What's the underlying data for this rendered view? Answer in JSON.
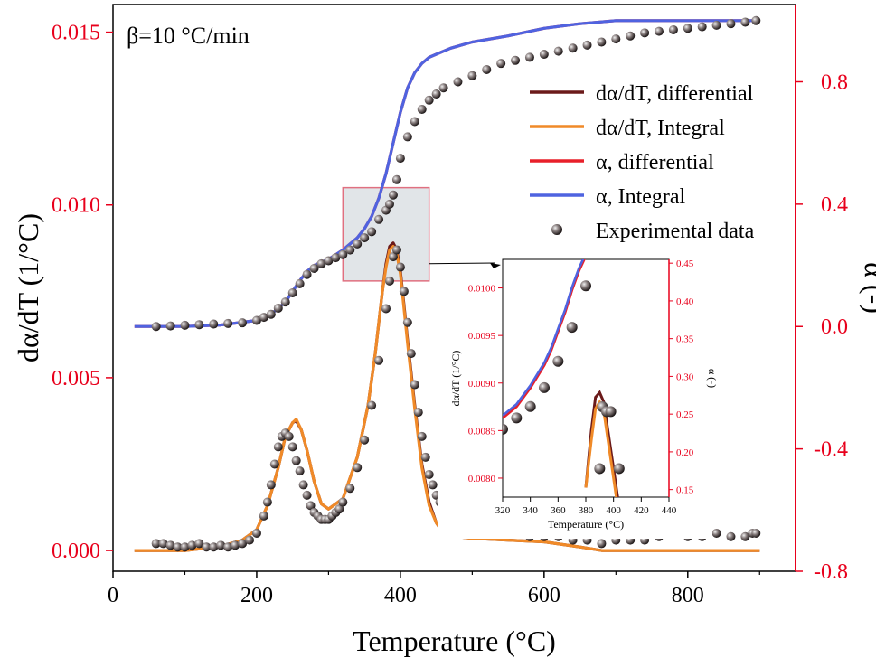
{
  "chart_data": {
    "type": "line",
    "title": "β=10 °C/min",
    "xlabel": "Temperature (°C)",
    "ylabel": "dα/dT (1/°C)",
    "y2label": "α (-)",
    "xlim": [
      0,
      950
    ],
    "ylim": [
      -0.0006,
      0.0158
    ],
    "y2lim": [
      -0.8,
      1.0526
    ],
    "x_ticks": [
      0,
      200,
      400,
      600,
      800
    ],
    "y_ticks": [
      0.0,
      0.005,
      0.01,
      0.015
    ],
    "y_tick_labels": [
      "0.000",
      "0.005",
      "0.010",
      "0.015"
    ],
    "y2_ticks": [
      -0.8,
      -0.4,
      0.0,
      0.4,
      0.8
    ],
    "y2_tick_labels": [
      "-0.8",
      "-0.4",
      "0.0",
      "0.4",
      "0.8"
    ],
    "colors": {
      "axis_left": "#e8001c",
      "axis_right": "#e8001c",
      "dadt_differential": "#6b1a1a",
      "dadt_integral": "#f08a28",
      "alpha_differential": "#e8202a",
      "alpha_integral": "#4f63e0",
      "experimental": "#4a4040"
    },
    "legend": {
      "position": "top-right",
      "entries": [
        {
          "label": "dα/dT, differential",
          "key": "dadt_differential",
          "kind": "line"
        },
        {
          "label": "dα/dT, Integral",
          "key": "dadt_integral",
          "kind": "line"
        },
        {
          "label": "α,  differential",
          "key": "alpha_differential",
          "kind": "line"
        },
        {
          "label": "α,  Integral",
          "key": "alpha_integral",
          "kind": "line"
        },
        {
          "label": "Experimental data",
          "key": "experimental",
          "kind": "marker"
        }
      ]
    },
    "series": [
      {
        "name": "dα/dT, differential",
        "axis": "left",
        "key": "dadt_differential",
        "x": [
          30,
          100,
          150,
          180,
          200,
          215,
          230,
          240,
          250,
          255,
          262,
          270,
          280,
          290,
          300,
          320,
          340,
          355,
          365,
          375,
          380,
          385,
          390,
          395,
          400,
          405,
          410,
          420,
          430,
          440,
          450,
          460,
          480,
          500,
          550,
          600,
          650,
          680,
          700,
          800,
          900
        ],
        "y": [
          0,
          0,
          0.00012,
          0.0003,
          0.0006,
          0.0013,
          0.0024,
          0.0033,
          0.0037,
          0.00375,
          0.0035,
          0.0029,
          0.002,
          0.00135,
          0.0012,
          0.0015,
          0.0027,
          0.0042,
          0.0057,
          0.0075,
          0.0083,
          0.0088,
          0.0089,
          0.0087,
          0.0081,
          0.0071,
          0.0061,
          0.0042,
          0.0025,
          0.0014,
          0.0008,
          0.0005,
          0.0004,
          0.00035,
          0.0003,
          0.00025,
          0.0001,
          0,
          0,
          0,
          0
        ]
      },
      {
        "name": "dα/dT, Integral",
        "axis": "left",
        "key": "dadt_integral",
        "x": [
          30,
          100,
          150,
          180,
          200,
          215,
          230,
          240,
          250,
          255,
          262,
          270,
          280,
          290,
          300,
          320,
          340,
          355,
          365,
          375,
          380,
          385,
          390,
          395,
          400,
          405,
          410,
          420,
          430,
          440,
          450,
          460,
          480,
          500,
          550,
          600,
          650,
          680,
          700,
          800,
          900
        ],
        "y": [
          0,
          0,
          0.00012,
          0.0003,
          0.0006,
          0.0013,
          0.0024,
          0.0033,
          0.0037,
          0.0038,
          0.0035,
          0.0029,
          0.002,
          0.00135,
          0.0012,
          0.0015,
          0.0027,
          0.0042,
          0.0057,
          0.0075,
          0.0082,
          0.0087,
          0.0088,
          0.0086,
          0.008,
          0.007,
          0.006,
          0.0041,
          0.0024,
          0.0013,
          0.0008,
          0.0005,
          0.0004,
          0.00035,
          0.0003,
          0.00025,
          0.0001,
          0,
          0,
          0,
          0
        ]
      },
      {
        "name": "α,  differential",
        "axis": "right",
        "key": "alpha_differential",
        "x": [
          30,
          100,
          150,
          200,
          220,
          240,
          260,
          270,
          280,
          300,
          320,
          340,
          350,
          360,
          370,
          380,
          390,
          400,
          410,
          420,
          430,
          440,
          450,
          470,
          500,
          550,
          600,
          650,
          700,
          750,
          800,
          900
        ],
        "y": [
          0,
          0,
          0.005,
          0.02,
          0.04,
          0.08,
          0.15,
          0.18,
          0.2,
          0.22,
          0.25,
          0.29,
          0.32,
          0.36,
          0.42,
          0.5,
          0.6,
          0.7,
          0.78,
          0.83,
          0.86,
          0.88,
          0.89,
          0.91,
          0.93,
          0.95,
          0.975,
          0.99,
          1.0,
          1.0,
          1.0,
          1.0
        ]
      },
      {
        "name": "α,  Integral",
        "axis": "right",
        "key": "alpha_integral",
        "x": [
          30,
          100,
          150,
          200,
          220,
          240,
          260,
          270,
          280,
          300,
          320,
          340,
          350,
          360,
          370,
          380,
          390,
          400,
          410,
          420,
          430,
          440,
          450,
          470,
          500,
          550,
          600,
          650,
          700,
          750,
          800,
          900
        ],
        "y": [
          0,
          0,
          0.005,
          0.02,
          0.04,
          0.08,
          0.15,
          0.18,
          0.2,
          0.22,
          0.25,
          0.29,
          0.32,
          0.36,
          0.42,
          0.5,
          0.6,
          0.7,
          0.78,
          0.83,
          0.86,
          0.88,
          0.89,
          0.91,
          0.93,
          0.95,
          0.975,
          0.99,
          1.0,
          1.0,
          1.0,
          1.0
        ]
      },
      {
        "name": "Experimental data",
        "axis": "left",
        "key": "experimental",
        "kind": "scatter",
        "x": [
          60,
          70,
          80,
          90,
          100,
          110,
          120,
          130,
          140,
          150,
          160,
          170,
          180,
          190,
          200,
          210,
          215,
          220,
          225,
          230,
          235,
          240,
          245,
          250,
          255,
          260,
          265,
          270,
          275,
          280,
          285,
          290,
          295,
          300,
          305,
          310,
          315,
          320,
          330,
          340,
          350,
          360,
          370,
          380,
          385,
          390,
          395,
          400,
          405,
          410,
          415,
          420,
          425,
          430,
          435,
          440,
          445,
          450,
          455,
          460,
          470,
          480,
          490,
          500,
          520,
          540,
          560,
          580,
          600,
          620,
          640,
          660,
          680,
          700,
          720,
          740,
          760,
          780,
          800,
          820,
          840,
          860,
          880,
          890,
          895
        ],
        "y": [
          0.0002,
          0.0002,
          0.00015,
          0.0001,
          0.0001,
          0.00015,
          0.0002,
          0.0001,
          0.0001,
          0.00015,
          0.0001,
          0.00015,
          0.0002,
          0.0003,
          0.0005,
          0.001,
          0.0014,
          0.0019,
          0.0025,
          0.003,
          0.0033,
          0.0034,
          0.0033,
          0.003,
          0.0026,
          0.0023,
          0.0019,
          0.0016,
          0.0013,
          0.0011,
          0.001,
          0.0009,
          0.0009,
          0.0009,
          0.001,
          0.0011,
          0.0012,
          0.0014,
          0.0018,
          0.0024,
          0.0032,
          0.0042,
          0.0055,
          0.007,
          0.0078,
          0.0085,
          0.0087,
          0.0082,
          0.0075,
          0.0066,
          0.0057,
          0.0048,
          0.004,
          0.0033,
          0.0027,
          0.0022,
          0.0019,
          0.0016,
          0.0014,
          0.0012,
          0.001,
          0.0009,
          0.0008,
          0.0007,
          0.0006,
          0.0005,
          0.0005,
          0.0004,
          0.0004,
          0.0004,
          0.0003,
          0.0003,
          0.0002,
          0.0003,
          0.0003,
          0.0003,
          0.0004,
          0.0005,
          0.0004,
          0.0004,
          0.0005,
          0.0004,
          0.0004,
          0.0005,
          0.0005
        ]
      }
    ],
    "experimental_alpha": {
      "x": [
        60,
        80,
        100,
        120,
        140,
        160,
        180,
        200,
        210,
        220,
        230,
        240,
        250,
        260,
        270,
        280,
        290,
        300,
        310,
        320,
        330,
        340,
        350,
        360,
        370,
        380,
        385,
        390,
        395,
        400,
        410,
        420,
        430,
        440,
        450,
        460,
        480,
        500,
        520,
        540,
        560,
        580,
        600,
        620,
        640,
        660,
        680,
        700,
        720,
        740,
        760,
        780,
        800,
        820,
        840,
        860,
        880,
        895
      ],
      "y": [
        0,
        0.002,
        0.004,
        0.006,
        0.008,
        0.01,
        0.012,
        0.02,
        0.03,
        0.04,
        0.06,
        0.08,
        0.11,
        0.14,
        0.17,
        0.19,
        0.205,
        0.215,
        0.225,
        0.235,
        0.25,
        0.27,
        0.29,
        0.31,
        0.35,
        0.38,
        0.4,
        0.43,
        0.48,
        0.55,
        0.62,
        0.67,
        0.71,
        0.74,
        0.76,
        0.78,
        0.8,
        0.82,
        0.84,
        0.86,
        0.87,
        0.88,
        0.89,
        0.9,
        0.91,
        0.92,
        0.93,
        0.94,
        0.95,
        0.96,
        0.965,
        0.97,
        0.975,
        0.98,
        0.985,
        0.99,
        0.995,
        1.0
      ]
    },
    "highlight_box": {
      "xlim": [
        320,
        440
      ],
      "ylim_left": [
        0.0078,
        0.0105
      ]
    },
    "inset": {
      "xlabel": "Temperature (°C)",
      "ylabel": "dα/dT (1/°C)",
      "y2label": "α (-)",
      "xlim": [
        320,
        440
      ],
      "ylim": [
        0.0078,
        0.0103
      ],
      "y2lim": [
        0.14,
        0.455
      ],
      "x_ticks": [
        320,
        340,
        360,
        380,
        400,
        420,
        440
      ],
      "y_ticks": [
        0.008,
        0.0085,
        0.009,
        0.0095,
        0.01
      ],
      "y_tick_labels": [
        "0.0080",
        "0.0085",
        "0.0090",
        "0.0095",
        "0.0100"
      ],
      "y2_ticks": [
        0.15,
        0.2,
        0.25,
        0.3,
        0.35,
        0.4,
        0.45
      ],
      "y2_tick_labels": [
        "0.15",
        "0.20",
        "0.25",
        "0.30",
        "0.35",
        "0.40",
        "0.45"
      ],
      "alpha_curve": {
        "x": [
          320,
          330,
          340,
          350,
          355,
          360,
          365,
          370,
          375,
          380
        ],
        "y": [
          0.245,
          0.26,
          0.285,
          0.315,
          0.335,
          0.36,
          0.385,
          0.415,
          0.44,
          0.46
        ]
      },
      "dadt_diff": {
        "x": [
          380,
          384,
          387,
          390,
          393,
          396,
          400,
          404
        ],
        "y": [
          0.0079,
          0.0085,
          0.00885,
          0.0089,
          0.0088,
          0.0085,
          0.0081,
          0.0077
        ]
      },
      "dadt_int": {
        "x": [
          380,
          384,
          387,
          390,
          393,
          396,
          400,
          404
        ],
        "y": [
          0.0079,
          0.0084,
          0.00873,
          0.0088,
          0.0087,
          0.0084,
          0.008,
          0.0076
        ]
      },
      "points_alpha": {
        "x": [
          320,
          330,
          340,
          350,
          360,
          370,
          380
        ],
        "y": [
          0.23,
          0.245,
          0.26,
          0.285,
          0.32,
          0.365,
          0.42
        ]
      },
      "points_dadt": {
        "x": [
          390,
          392,
          395,
          398,
          404
        ],
        "y": [
          0.0081,
          0.00875,
          0.0087,
          0.0087,
          0.0081
        ]
      }
    }
  }
}
